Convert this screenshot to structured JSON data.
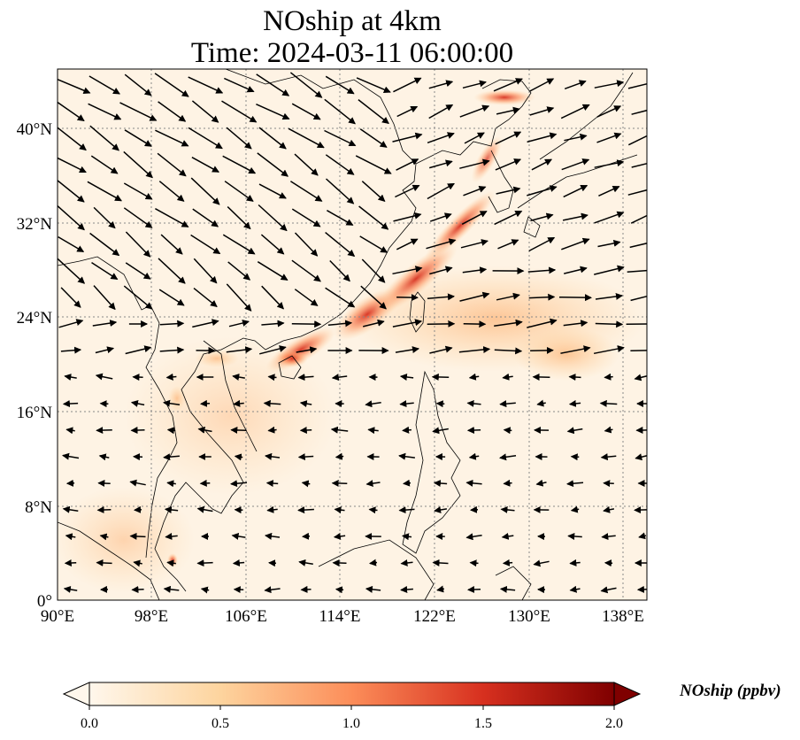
{
  "title": {
    "line1": "NOship at 4km",
    "line2": "Time: 2024-03-11 06:00:00"
  },
  "map": {
    "variable": "NOship",
    "extent_lon": [
      90,
      140
    ],
    "extent_lat": [
      0,
      45
    ],
    "gridlines": "dotted gray",
    "lon_ticks": [
      "90°E",
      "98°E",
      "106°E",
      "114°E",
      "122°E",
      "130°E",
      "138°E"
    ],
    "lat_ticks": [
      "0°",
      "8°N",
      "16°N",
      "24°N",
      "32°N",
      "40°N"
    ],
    "wind_vectors": "black arrows",
    "hotspots": "shipping lanes along China coast, Korea, Strait of Malacca"
  },
  "colorbar": {
    "label": "NOship (ppbv)",
    "ticks": [
      "0.0",
      "0.5",
      "1.0",
      "1.5",
      "2.0"
    ],
    "range": [
      0,
      2
    ],
    "colormap": "OrRd",
    "extend": "both",
    "colors": [
      "#fff7ec",
      "#fdd49e",
      "#fc8d59",
      "#d7301f",
      "#7f0000"
    ]
  }
}
